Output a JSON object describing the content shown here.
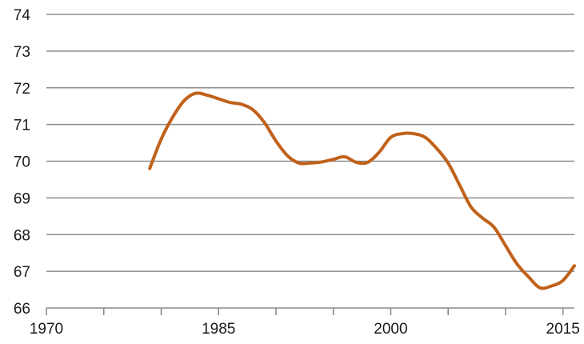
{
  "chart_data": {
    "type": "line",
    "title": "",
    "xlabel": "",
    "ylabel": "",
    "xlim": [
      1970,
      2016
    ],
    "ylim": [
      66,
      74
    ],
    "x_ticks": [
      1970,
      1985,
      2000,
      2015
    ],
    "y_ticks": [
      66,
      67,
      68,
      69,
      70,
      71,
      72,
      73,
      74
    ],
    "grid": "horizontal",
    "legend": "none",
    "series": [
      {
        "color": "#c0611a",
        "x": [
          1979,
          1980,
          1981,
          1982,
          1983,
          1984,
          1985,
          1986,
          1987,
          1988,
          1989,
          1990,
          1991,
          1992,
          1993,
          1994,
          1995,
          1996,
          1997,
          1998,
          1999,
          2000,
          2001,
          2002,
          2003,
          2004,
          2005,
          2006,
          2007,
          2008,
          2009,
          2010,
          2011,
          2012,
          2013,
          2014,
          2015,
          2016
        ],
        "y": [
          69.8,
          70.6,
          71.2,
          71.65,
          71.85,
          71.8,
          71.7,
          71.6,
          71.55,
          71.4,
          71.05,
          70.55,
          70.15,
          69.95,
          69.95,
          69.98,
          70.05,
          70.12,
          69.97,
          69.97,
          70.25,
          70.65,
          70.75,
          70.75,
          70.65,
          70.35,
          69.95,
          69.35,
          68.75,
          68.45,
          68.2,
          67.7,
          67.2,
          66.85,
          66.55,
          66.6,
          66.75,
          67.15
        ]
      }
    ]
  }
}
